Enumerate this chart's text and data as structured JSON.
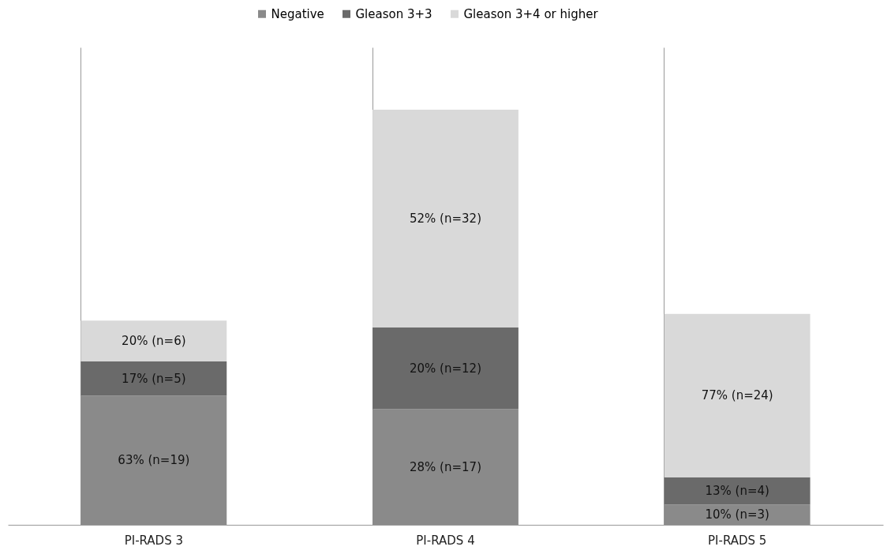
{
  "chart_data": {
    "type": "bar",
    "stacked": true,
    "categories": [
      "PI-RADS 3",
      "PI-RADS 4",
      "PI-RADS 5"
    ],
    "series": [
      {
        "name": "Negative",
        "color": "#8a8a8a",
        "values": [
          19,
          17,
          3
        ],
        "value_labels": [
          "63% (n=19)",
          "28% (n=17)",
          "10% (n=3)"
        ]
      },
      {
        "name": "Gleason 3+3",
        "color": "#6a6a6a",
        "values": [
          5,
          12,
          4
        ],
        "value_labels": [
          "17% (n=5)",
          "20% (n=12)",
          "13% (n=4)"
        ]
      },
      {
        "name": "Gleason 3+4 or higher",
        "color": "#d9d9d9",
        "values": [
          6,
          32,
          24
        ],
        "value_labels": [
          "20% (n=6)",
          "52% (n=32)",
          "77% (n=24)"
        ]
      }
    ],
    "grid": "x",
    "legend": "top"
  }
}
